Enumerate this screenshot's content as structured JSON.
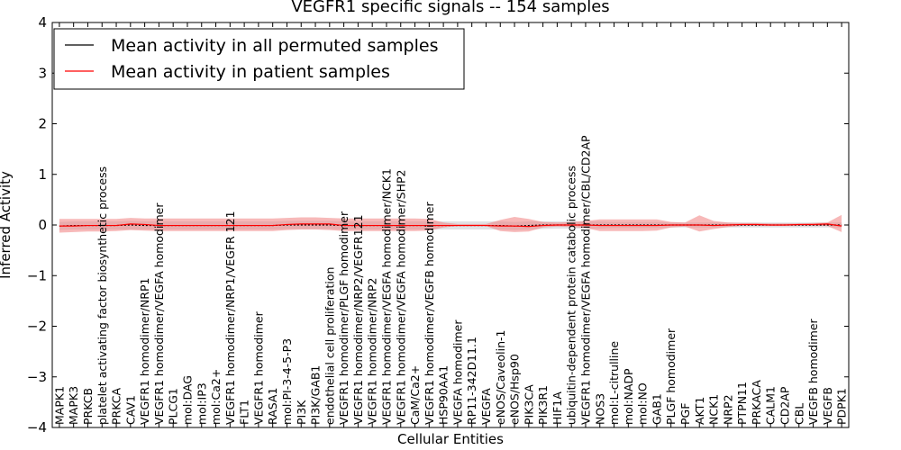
{
  "chart_data": {
    "type": "line",
    "title": "VEGFR1 specific signals -- 154 samples",
    "xlabel": "Cellular Entities",
    "ylabel": "Inferred Activity",
    "ylim": [
      -4,
      4
    ],
    "yticks": [
      -4,
      -3,
      -2,
      -1,
      0,
      1,
      2,
      3,
      4
    ],
    "ytick_labels": [
      "−4",
      "−3",
      "−2",
      "−1",
      "0",
      "1",
      "2",
      "3",
      "4"
    ],
    "grid": false,
    "legend_position": "top-left",
    "categories": [
      "MAPK1",
      "MAPK3",
      "PRKCB",
      "platelet activating factor biosynthetic process",
      "PRKCA",
      "CAV1",
      "VEGFR1 homodimer/NRP1",
      "VEGFR1 homodimer/VEGFA homodimer",
      "PLCG1",
      "mol:DAG",
      "mol:IP3",
      "mol:Ca2+",
      "VEGFR1 homodimer/NRP1/VEGFR 121",
      "FLT1",
      "VEGFR1 homodimer",
      "RASA1",
      "mol:PI-3-4-5-P3",
      "PI3K",
      "PI3K/GAB1",
      "endothelial cell proliferation",
      "VEGFR1 homodimer/PLGF homodimer",
      "VEGFR1 homodimer/NRP2/VEGFR121",
      "VEGFR1 homodimer/NRP2",
      "VEGFR1 homodimer/VEGFA homodimer/NCK1",
      "VEGFR1 homodimer/VEGFA homodimer/SHP2",
      "CaM/Ca2+",
      "VEGFR1 homodimer/VEGFB homodimer",
      "HSP90AA1",
      "VEGFA homodimer",
      "RP11-342D11.1",
      "VEGFA",
      "eNOS/Caveolin-1",
      "eNOS/Hsp90",
      "PIK3CA",
      "PIK3R1",
      "HIF1A",
      "ubiquitin-dependent protein catabolic process",
      "VEGFR1 homodimer/VEGFA homodimer/CBL/CD2AP",
      "NOS3",
      "mol:L-citrulline",
      "mol:NADP",
      "mol:NO",
      "GAB1",
      "PLGF homodimer",
      "PGF",
      "AKT1",
      "NCK1",
      "NRP2",
      "PTPN11",
      "PRKACA",
      "CALM1",
      "CD2AP",
      "CBL",
      "VEGFB homodimer",
      "VEGFB",
      "PDPK1"
    ],
    "series": [
      {
        "name": "Mean activity in all permuted samples",
        "color": "#000000",
        "values": [
          -0.02,
          -0.01,
          -0.01,
          -0.01,
          -0.01,
          0.0,
          -0.01,
          -0.01,
          -0.01,
          -0.01,
          -0.01,
          -0.01,
          -0.01,
          -0.01,
          -0.01,
          -0.01,
          0.0,
          0.0,
          0.0,
          0.0,
          -0.01,
          -0.01,
          -0.01,
          -0.01,
          -0.01,
          -0.01,
          -0.01,
          -0.01,
          -0.01,
          -0.01,
          -0.01,
          -0.01,
          -0.02,
          -0.01,
          0.0,
          0.0,
          0.0,
          0.0,
          0.0,
          0.0,
          0.0,
          0.0,
          0.0,
          0.0,
          0.0,
          0.0,
          0.0,
          0.0,
          0.0,
          0.0,
          0.0,
          0.0,
          0.0,
          0.0,
          0.0,
          0.0
        ],
        "band_lower": [
          -0.1,
          -0.09,
          -0.09,
          -0.09,
          -0.09,
          -0.09,
          -0.09,
          -0.09,
          -0.09,
          -0.09,
          -0.09,
          -0.09,
          -0.09,
          -0.09,
          -0.09,
          -0.09,
          -0.08,
          -0.08,
          -0.08,
          -0.08,
          -0.09,
          -0.09,
          -0.09,
          -0.09,
          -0.09,
          -0.09,
          -0.09,
          -0.09,
          -0.09,
          -0.09,
          -0.09,
          -0.09,
          -0.1,
          -0.09,
          -0.08,
          -0.07,
          -0.07,
          -0.07,
          -0.07,
          -0.06,
          -0.06,
          -0.06,
          -0.06,
          -0.05,
          -0.05,
          -0.05,
          -0.05,
          -0.05,
          -0.05,
          -0.05,
          -0.05,
          -0.05,
          -0.05,
          -0.05,
          -0.05,
          -0.05
        ],
        "band_upper": [
          0.06,
          0.07,
          0.07,
          0.07,
          0.07,
          0.08,
          0.07,
          0.07,
          0.07,
          0.07,
          0.07,
          0.07,
          0.07,
          0.07,
          0.07,
          0.07,
          0.08,
          0.08,
          0.08,
          0.08,
          0.07,
          0.07,
          0.07,
          0.07,
          0.07,
          0.07,
          0.07,
          0.07,
          0.07,
          0.07,
          0.07,
          0.07,
          0.06,
          0.07,
          0.07,
          0.07,
          0.07,
          0.07,
          0.07,
          0.06,
          0.06,
          0.06,
          0.06,
          0.05,
          0.05,
          0.05,
          0.05,
          0.05,
          0.05,
          0.05,
          0.05,
          0.05,
          0.05,
          0.05,
          0.05,
          0.05
        ]
      },
      {
        "name": "Mean activity in patient samples",
        "color": "#ff0000",
        "values": [
          -0.02,
          -0.02,
          -0.01,
          -0.01,
          -0.01,
          0.02,
          0.01,
          -0.01,
          -0.01,
          -0.01,
          -0.01,
          -0.01,
          -0.01,
          -0.01,
          -0.01,
          -0.01,
          0.01,
          0.02,
          0.02,
          0.02,
          -0.01,
          -0.01,
          -0.01,
          -0.01,
          -0.01,
          -0.01,
          -0.01,
          -0.01,
          -0.01,
          -0.01,
          -0.01,
          -0.02,
          -0.02,
          -0.03,
          -0.01,
          0.0,
          0.0,
          0.0,
          -0.01,
          -0.01,
          -0.01,
          -0.01,
          -0.01,
          0.0,
          0.0,
          0.0,
          -0.01,
          0.0,
          0.01,
          0.01,
          0.0,
          0.0,
          0.01,
          0.01,
          0.02,
          -0.02
        ],
        "band_lower": [
          -0.15,
          -0.14,
          -0.13,
          -0.13,
          -0.12,
          -0.1,
          -0.11,
          -0.12,
          -0.12,
          -0.12,
          -0.12,
          -0.12,
          -0.12,
          -0.12,
          -0.12,
          -0.12,
          -0.1,
          -0.09,
          -0.09,
          -0.1,
          -0.12,
          -0.12,
          -0.12,
          -0.12,
          -0.12,
          -0.12,
          -0.11,
          -0.05,
          -0.02,
          -0.02,
          -0.02,
          -0.12,
          -0.14,
          -0.13,
          -0.05,
          -0.03,
          -0.04,
          -0.06,
          -0.12,
          -0.12,
          -0.12,
          -0.12,
          -0.11,
          -0.05,
          -0.03,
          -0.13,
          -0.08,
          -0.04,
          -0.02,
          -0.02,
          -0.02,
          -0.02,
          -0.02,
          -0.02,
          -0.02,
          -0.14
        ],
        "band_upper": [
          0.12,
          0.12,
          0.12,
          0.12,
          0.12,
          0.14,
          0.13,
          0.13,
          0.13,
          0.13,
          0.13,
          0.13,
          0.13,
          0.13,
          0.13,
          0.13,
          0.14,
          0.15,
          0.15,
          0.14,
          0.13,
          0.13,
          0.13,
          0.13,
          0.13,
          0.13,
          0.12,
          0.05,
          0.02,
          0.02,
          0.02,
          0.1,
          0.16,
          0.12,
          0.06,
          0.05,
          0.06,
          0.08,
          0.11,
          0.11,
          0.11,
          0.11,
          0.11,
          0.06,
          0.05,
          0.19,
          0.08,
          0.05,
          0.04,
          0.04,
          0.03,
          0.03,
          0.03,
          0.04,
          0.05,
          0.2
        ]
      }
    ]
  }
}
